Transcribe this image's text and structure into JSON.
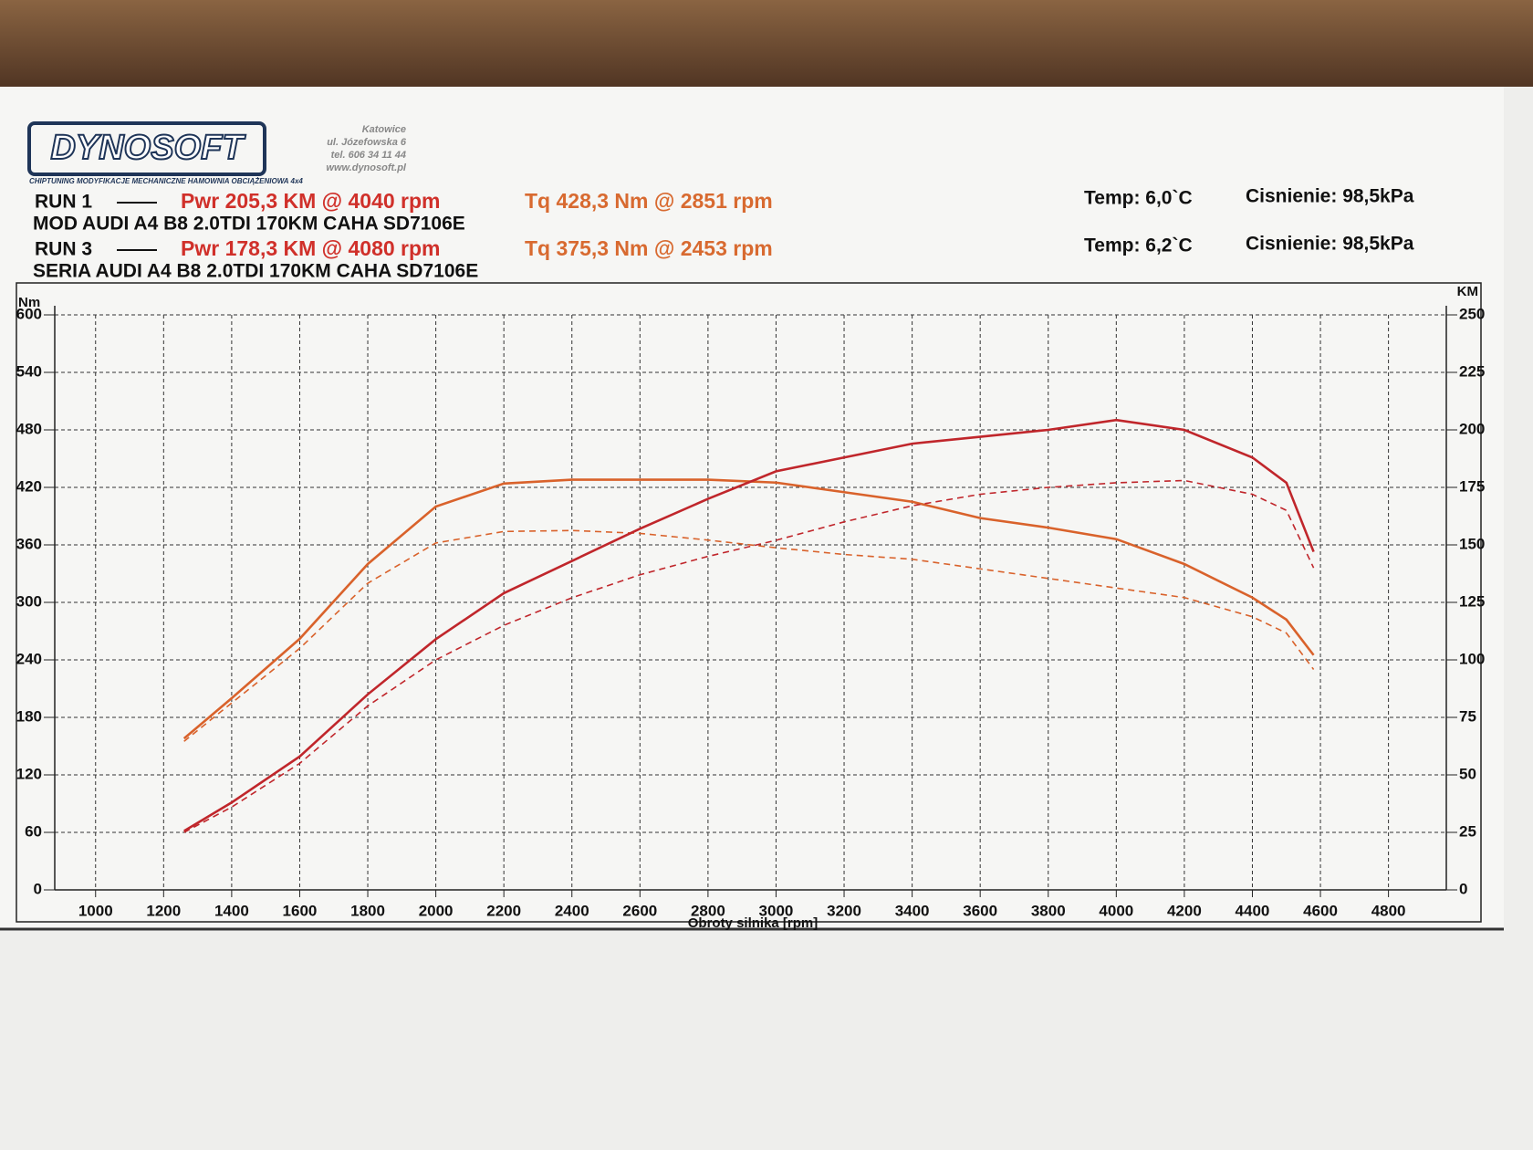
{
  "header": {
    "logo": "DYNOSOFT",
    "address": [
      "Katowice",
      "ul. Józefowska 6",
      "tel. 606 34 11 44",
      "www.dynosoft.pl"
    ],
    "tagline": "CHIPTUNING   MODYFIKACJE MECHANICZNE   HAMOWNIA OBCIĄŻENIOWA 4x4"
  },
  "runs": [
    {
      "label": "RUN 1",
      "power": "Pwr  205,3 KM @ 4040 rpm",
      "torque": "Tq 428,3 Nm @ 2851 rpm",
      "car": "MOD AUDI A4 B8 2.0TDI 170KM CAHA SD7106E",
      "temp": "Temp: 6,0`C",
      "pressure": "Cisnienie: 98,5kPa"
    },
    {
      "label": "RUN 3",
      "power": "Pwr  178,3 KM @ 4080 rpm",
      "torque": "Tq 375,3 Nm @ 2453 rpm",
      "car": "SERIA AUDI A4 B8 2.0TDI 170KM CAHA SD7106E",
      "temp": "Temp: 6,2`C",
      "pressure": "Cisnienie: 98,5kPa"
    }
  ],
  "chart_data": {
    "type": "line",
    "x_label": "Obroty silnika [rpm]",
    "y_label": "Nm",
    "y2_label": "KM",
    "grid": true,
    "x": [
      1260,
      1400,
      1600,
      1800,
      2000,
      2200,
      2400,
      2600,
      2800,
      3000,
      3200,
      3400,
      3600,
      3800,
      4000,
      4200,
      4400,
      4500,
      4580
    ],
    "xlim": [
      880,
      4970
    ],
    "xticks": [
      1000,
      1200,
      1400,
      1600,
      1800,
      2000,
      2200,
      2400,
      2600,
      2800,
      3000,
      3200,
      3400,
      3600,
      3800,
      4000,
      4200,
      4400,
      4600,
      4800
    ],
    "ylim": [
      0,
      600
    ],
    "yticks": [
      0,
      60,
      120,
      180,
      240,
      300,
      360,
      420,
      480,
      540,
      600
    ],
    "y2lim": [
      0,
      250
    ],
    "y2ticks": [
      0,
      25,
      50,
      75,
      100,
      125,
      150,
      175,
      200,
      225,
      250
    ],
    "series": [
      {
        "color": "#d9622b",
        "dashed": false,
        "values": [
          158,
          200,
          262,
          340,
          400,
          424,
          428,
          428,
          428,
          425,
          415,
          405,
          388,
          378,
          366,
          340,
          305,
          282,
          245
        ]
      },
      {
        "color": "#d9622b",
        "dashed": true,
        "values": [
          155,
          195,
          252,
          320,
          362,
          374,
          375,
          372,
          365,
          357,
          350,
          345,
          335,
          325,
          315,
          305,
          285,
          268,
          230
        ]
      },
      {
        "color": "#c0262b",
        "dashed": false,
        "axis": "y2",
        "values": [
          25.6,
          38,
          58,
          85,
          109,
          129,
          143,
          157,
          170,
          182,
          188,
          194,
          197,
          200,
          204.3,
          200,
          188,
          177,
          147
        ]
      },
      {
        "color": "#c0262b",
        "dashed": true,
        "axis": "y2",
        "values": [
          25,
          36,
          55,
          80,
          100,
          115,
          127,
          137,
          145,
          152,
          160,
          167,
          172,
          175,
          177,
          178,
          172,
          165,
          140
        ]
      }
    ]
  }
}
